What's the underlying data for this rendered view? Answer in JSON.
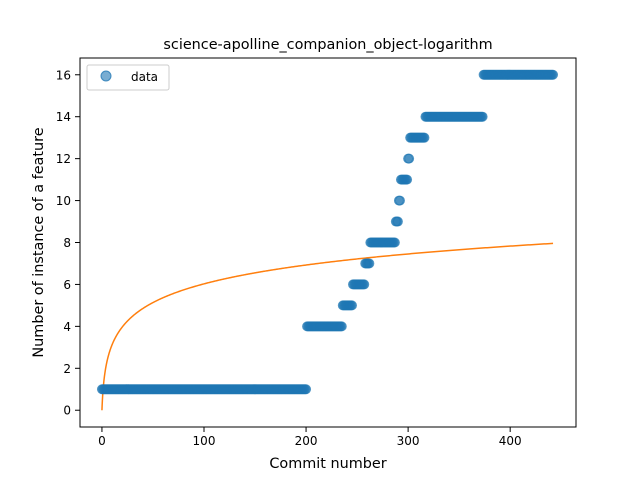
{
  "chart_data": {
    "type": "scatter",
    "title": "science-apolline_companion_object-logarithm",
    "xlabel": "Commit number",
    "ylabel": "Number of instance of a feature",
    "xlim": [
      -21.5,
      464.5
    ],
    "ylim": [
      -0.8,
      16.8
    ],
    "xticks": [
      0,
      100,
      200,
      300,
      400
    ],
    "yticks": [
      0,
      2,
      4,
      6,
      8,
      10,
      12,
      14,
      16
    ],
    "legend": {
      "position": "top-left",
      "entries": [
        "data"
      ]
    },
    "grid": false,
    "colors": {
      "scatter": "#1f77b4",
      "fit": "#ff7f0e"
    },
    "series": [
      {
        "name": "data",
        "kind": "scatter",
        "segments": [
          {
            "x_from": 0,
            "x_to": 200,
            "y": 1
          },
          {
            "x_from": 201,
            "x_to": 235,
            "y": 4
          },
          {
            "x_from": 236,
            "x_to": 245,
            "y": 5
          },
          {
            "x_from": 246,
            "x_to": 257,
            "y": 6
          },
          {
            "x_from": 258,
            "x_to": 262,
            "y": 7
          },
          {
            "x_from": 263,
            "x_to": 287,
            "y": 8
          },
          {
            "x_from": 288,
            "x_to": 290,
            "y": 9
          },
          {
            "x_from": 291,
            "x_to": 292,
            "y": 10
          },
          {
            "x_from": 293,
            "x_to": 299,
            "y": 11
          },
          {
            "x_from": 300,
            "x_to": 301,
            "y": 12
          },
          {
            "x_from": 302,
            "x_to": 316,
            "y": 13
          },
          {
            "x_from": 317,
            "x_to": 373,
            "y": 14
          },
          {
            "x_from": 374,
            "x_to": 442,
            "y": 16
          }
        ]
      },
      {
        "kind": "line",
        "function": "logarithm",
        "a": 1.306,
        "x": [
          0,
          1,
          5,
          10,
          25,
          50,
          100,
          150,
          200,
          250,
          300,
          350,
          400,
          442
        ],
        "y": [
          0,
          0.905,
          2.34,
          3.13,
          4.26,
          5.13,
          6.03,
          6.55,
          6.92,
          7.21,
          7.45,
          7.65,
          7.82,
          7.95
        ]
      }
    ]
  }
}
